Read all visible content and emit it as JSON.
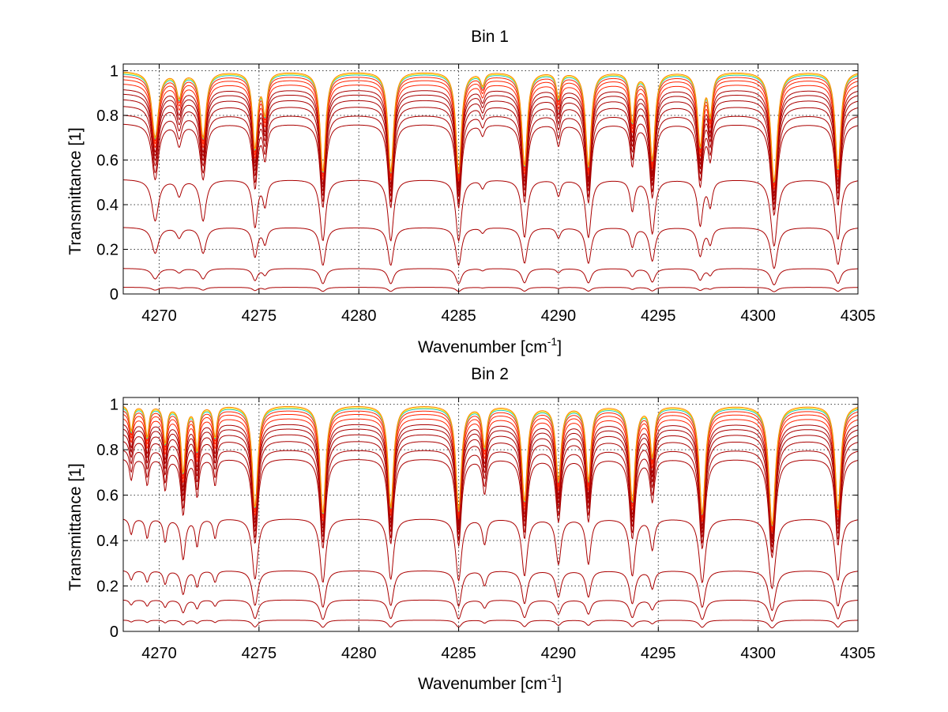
{
  "chart_data": [
    {
      "type": "line",
      "title": "Bin 1",
      "xlabel": "Wavenumber [cm",
      "xlabel_sup": "-1",
      "xlabel_end": "]",
      "ylabel": "Transmittance [1]",
      "xlim": [
        4268.2,
        4305
      ],
      "ylim": [
        0,
        1.03
      ],
      "xticks": [
        4270,
        4275,
        4280,
        4285,
        4290,
        4295,
        4300,
        4305
      ],
      "yticks": [
        0,
        0.2,
        0.4,
        0.6,
        0.8,
        1
      ],
      "ytick_labels": [
        "0",
        "0.2",
        "0.4",
        "0.6",
        "0.8",
        "1"
      ],
      "grid": true,
      "absorption_lines": [
        {
          "center": 4269.8,
          "depth": 0.35,
          "width": 0.18
        },
        {
          "center": 4271.0,
          "depth": 0.12,
          "width": 0.15
        },
        {
          "center": 4272.2,
          "depth": 0.35,
          "width": 0.16
        },
        {
          "center": 4274.8,
          "depth": 0.42,
          "width": 0.13
        },
        {
          "center": 4275.3,
          "depth": 0.2,
          "width": 0.12
        },
        {
          "center": 4278.2,
          "depth": 0.6,
          "width": 0.14
        },
        {
          "center": 4281.6,
          "depth": 0.6,
          "width": 0.14
        },
        {
          "center": 4285.0,
          "depth": 0.6,
          "width": 0.14
        },
        {
          "center": 4286.2,
          "depth": 0.06,
          "width": 0.12
        },
        {
          "center": 4288.3,
          "depth": 0.55,
          "width": 0.14
        },
        {
          "center": 4290.0,
          "depth": 0.12,
          "width": 0.12
        },
        {
          "center": 4291.5,
          "depth": 0.55,
          "width": 0.14
        },
        {
          "center": 4293.7,
          "depth": 0.25,
          "width": 0.12
        },
        {
          "center": 4294.7,
          "depth": 0.5,
          "width": 0.14
        },
        {
          "center": 4297.1,
          "depth": 0.4,
          "width": 0.14
        },
        {
          "center": 4297.6,
          "depth": 0.2,
          "width": 0.12
        },
        {
          "center": 4300.8,
          "depth": 0.68,
          "width": 0.16
        },
        {
          "center": 4304.0,
          "depth": 0.58,
          "width": 0.14
        }
      ],
      "baselines": [
        1.0,
        0.995,
        0.99,
        0.98,
        0.965,
        0.945,
        0.92,
        0.9,
        0.875,
        0.845,
        0.805,
        0.765,
        0.515,
        0.3,
        0.115,
        0.03,
        0.0
      ],
      "series_color_order": [
        "#aa0000",
        "#ff2200",
        "#ff8800",
        "#ffdd00",
        "#22cccc",
        "#1144dd"
      ]
    },
    {
      "type": "line",
      "title": "Bin 2",
      "xlabel": "Wavenumber [cm",
      "xlabel_sup": "-1",
      "xlabel_end": "]",
      "ylabel": "Transmittance [1]",
      "xlim": [
        4268.2,
        4305
      ],
      "ylim": [
        0,
        1.03
      ],
      "xticks": [
        4270,
        4275,
        4280,
        4285,
        4290,
        4295,
        4300,
        4305
      ],
      "yticks": [
        0,
        0.2,
        0.4,
        0.6,
        0.8,
        1
      ],
      "ytick_labels": [
        "0",
        "0.2",
        "0.4",
        "0.6",
        "0.8",
        "1"
      ],
      "grid": true,
      "absorption_lines": [
        {
          "center": 4268.6,
          "depth": 0.12,
          "width": 0.1
        },
        {
          "center": 4269.4,
          "depth": 0.15,
          "width": 0.1
        },
        {
          "center": 4270.3,
          "depth": 0.18,
          "width": 0.1
        },
        {
          "center": 4271.2,
          "depth": 0.35,
          "width": 0.12
        },
        {
          "center": 4271.9,
          "depth": 0.22,
          "width": 0.1
        },
        {
          "center": 4272.8,
          "depth": 0.15,
          "width": 0.1
        },
        {
          "center": 4274.8,
          "depth": 0.6,
          "width": 0.14
        },
        {
          "center": 4278.2,
          "depth": 0.65,
          "width": 0.14
        },
        {
          "center": 4281.6,
          "depth": 0.6,
          "width": 0.14
        },
        {
          "center": 4285.0,
          "depth": 0.62,
          "width": 0.14
        },
        {
          "center": 4286.3,
          "depth": 0.2,
          "width": 0.12
        },
        {
          "center": 4288.3,
          "depth": 0.55,
          "width": 0.14
        },
        {
          "center": 4290.0,
          "depth": 0.4,
          "width": 0.14
        },
        {
          "center": 4291.5,
          "depth": 0.4,
          "width": 0.13
        },
        {
          "center": 4293.7,
          "depth": 0.55,
          "width": 0.14
        },
        {
          "center": 4294.7,
          "depth": 0.25,
          "width": 0.12
        },
        {
          "center": 4297.2,
          "depth": 0.65,
          "width": 0.15
        },
        {
          "center": 4300.7,
          "depth": 0.75,
          "width": 0.16
        },
        {
          "center": 4304.0,
          "depth": 0.62,
          "width": 0.14
        }
      ],
      "baselines": [
        1.0,
        0.995,
        0.99,
        0.98,
        0.965,
        0.945,
        0.92,
        0.9,
        0.875,
        0.845,
        0.805,
        0.765,
        0.5,
        0.27,
        0.14,
        0.05,
        0.0
      ],
      "series_color_order": [
        "#aa0000",
        "#ff2200",
        "#ff8800",
        "#ffdd00",
        "#22cccc",
        "#1144dd"
      ]
    }
  ]
}
